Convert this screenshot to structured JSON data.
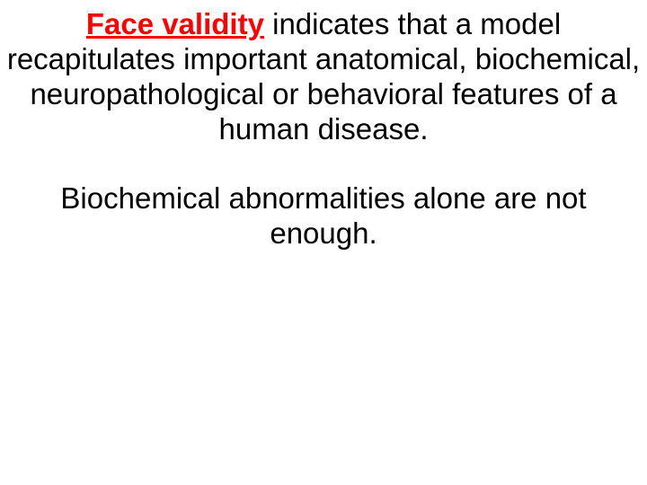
{
  "slide": {
    "background_color": "#ffffff",
    "text_color": "#000000",
    "accent_color": "#ff0000",
    "font_family": "Arial",
    "font_size_pt": 24,
    "paragraph1": {
      "term": "Face validity",
      "rest": " indicates that a model recapitulates important anatomical, biochemical, neuropathological or behavioral features of a human disease."
    },
    "paragraph2": "Biochemical abnormalities alone are not enough."
  }
}
